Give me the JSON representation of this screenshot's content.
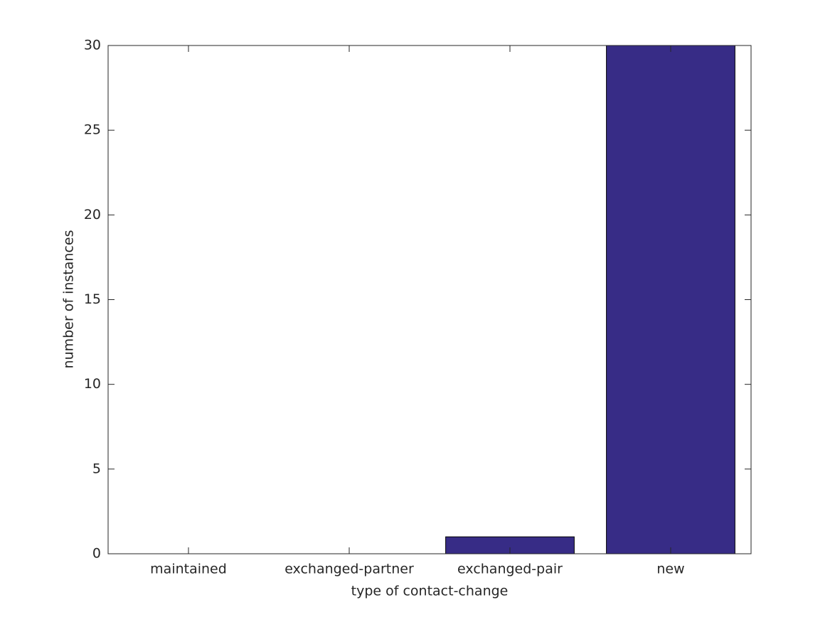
{
  "chart_data": {
    "type": "bar",
    "xlabel": "type of contact-change",
    "ylabel": "number of instances",
    "categories": [
      "maintained",
      "exchanged-partner",
      "exchanged-pair",
      "new"
    ],
    "values": [
      0,
      0,
      1,
      30
    ],
    "color": "#372c86",
    "ylim": [
      0,
      30
    ],
    "yticks": [
      0,
      5,
      10,
      15,
      20,
      25,
      30
    ],
    "grid": false
  }
}
